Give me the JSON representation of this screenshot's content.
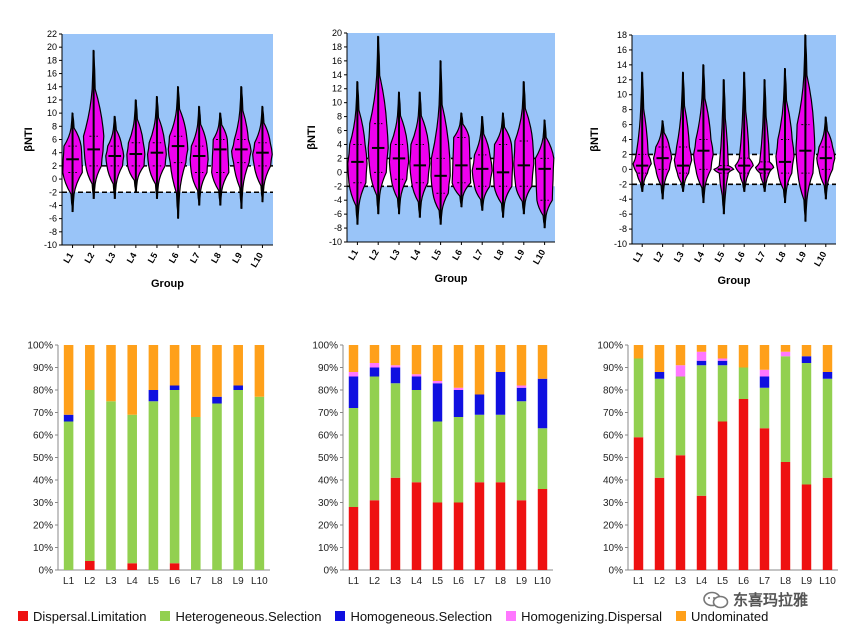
{
  "chart_data": [
    {
      "type": "violin",
      "ylabel": "βNTI",
      "xlabel": "Group",
      "ylim": [
        -10,
        22
      ],
      "ytick_step": 2,
      "thresholds": [
        2,
        -2
      ],
      "categories": [
        "L1",
        "L2",
        "L3",
        "L4",
        "L5",
        "L6",
        "L7",
        "L8",
        "L9",
        "L10"
      ],
      "series": [
        {
          "name": "L1",
          "min": -5,
          "max": 10,
          "median": 3,
          "q1": 1,
          "q3": 5,
          "spread": [
            2.2,
            2.4,
            2.5
          ]
        },
        {
          "name": "L2",
          "min": -3,
          "max": 19.5,
          "median": 4.5,
          "q1": 2,
          "q3": 6.5,
          "spread": [
            2.6,
            2.4,
            2.0
          ]
        },
        {
          "name": "L3",
          "min": -3,
          "max": 9.5,
          "median": 3.5,
          "q1": 2,
          "q3": 5,
          "spread": [
            1.8,
            2.3,
            2.0
          ]
        },
        {
          "name": "L4",
          "min": -2,
          "max": 12,
          "median": 3.8,
          "q1": 2,
          "q3": 5.5,
          "spread": [
            1.9,
            2.3,
            2.1
          ]
        },
        {
          "name": "L5",
          "min": -3,
          "max": 12.5,
          "median": 4,
          "q1": 2,
          "q3": 5.5,
          "spread": [
            2.0,
            2.4,
            2.1
          ]
        },
        {
          "name": "L6",
          "min": -6,
          "max": 14,
          "median": 5,
          "q1": 2.5,
          "q3": 6.5,
          "spread": [
            2.2,
            2.5,
            2.0
          ]
        },
        {
          "name": "L7",
          "min": -4,
          "max": 11,
          "median": 3.5,
          "q1": 1,
          "q3": 5,
          "spread": [
            2.0,
            2.3,
            2.0
          ]
        },
        {
          "name": "L8",
          "min": -4,
          "max": 10,
          "median": 4.5,
          "q1": 1,
          "q3": 6,
          "spread": [
            1.8,
            2.0,
            2.2
          ]
        },
        {
          "name": "L9",
          "min": -4.5,
          "max": 14,
          "median": 4.5,
          "q1": 2.5,
          "q3": 6,
          "spread": [
            1.8,
            2.5,
            2.0
          ]
        },
        {
          "name": "L10",
          "min": -3.5,
          "max": 11,
          "median": 4,
          "q1": 2,
          "q3": 5.5,
          "spread": [
            2.0,
            2.5,
            2.1
          ]
        }
      ]
    },
    {
      "type": "violin",
      "ylabel": "βNTI",
      "xlabel": "Group",
      "ylim": [
        -10,
        20
      ],
      "ytick_step": 2,
      "thresholds": [
        2,
        -2
      ],
      "categories": [
        "L1",
        "L2",
        "L3",
        "L4",
        "L5",
        "L6",
        "L7",
        "L8",
        "L9",
        "L10"
      ],
      "series": [
        {
          "name": "L1",
          "min": -7.5,
          "max": 13,
          "median": 1.5,
          "q1": -1.5,
          "q3": 4,
          "spread": [
            2.0,
            2.5,
            2.2
          ]
        },
        {
          "name": "L2",
          "min": -6,
          "max": 19.5,
          "median": 3.5,
          "q1": 0,
          "q3": 7,
          "spread": [
            2.2,
            2.6,
            2.1
          ]
        },
        {
          "name": "L3",
          "min": -6,
          "max": 11.5,
          "median": 2,
          "q1": -1,
          "q3": 4,
          "spread": [
            2.2,
            2.5,
            2.0
          ]
        },
        {
          "name": "L4",
          "min": -6.5,
          "max": 11.5,
          "median": 1,
          "q1": -1.5,
          "q3": 4,
          "spread": [
            2.3,
            2.6,
            2.1
          ]
        },
        {
          "name": "L5",
          "min": -7.5,
          "max": 16,
          "median": -0.5,
          "q1": -3,
          "q3": 2,
          "spread": [
            2.4,
            2.5,
            2.0
          ]
        },
        {
          "name": "L6",
          "min": -5,
          "max": 8.5,
          "median": 1,
          "q1": -1.5,
          "q3": 5,
          "spread": [
            2.0,
            2.2,
            2.4
          ]
        },
        {
          "name": "L7",
          "min": -5.5,
          "max": 8,
          "median": 0.5,
          "q1": -2,
          "q3": 2.5,
          "spread": [
            2.0,
            2.6,
            2.0
          ]
        },
        {
          "name": "L8",
          "min": -6.5,
          "max": 8.5,
          "median": 0,
          "q1": -2,
          "q3": 4,
          "spread": [
            2.2,
            2.5,
            2.3
          ]
        },
        {
          "name": "L9",
          "min": -6,
          "max": 13,
          "median": 1,
          "q1": -2,
          "q3": 4.5,
          "spread": [
            2.3,
            2.6,
            2.1
          ]
        },
        {
          "name": "L10",
          "min": -8,
          "max": 7.5,
          "median": 0.5,
          "q1": -4,
          "q3": 2,
          "spread": [
            2.4,
            2.2,
            2.0
          ]
        }
      ]
    },
    {
      "type": "violin",
      "ylabel": "βNTI",
      "xlabel": "Group",
      "ylim": [
        -10,
        18
      ],
      "ytick_step": 2,
      "thresholds": [
        2,
        -2
      ],
      "categories": [
        "L1",
        "L2",
        "L3",
        "L4",
        "L5",
        "L6",
        "L7",
        "L8",
        "L9",
        "L10"
      ],
      "series": [
        {
          "name": "L1",
          "min": -3,
          "max": 13,
          "median": 0.5,
          "q1": -0.5,
          "q3": 2,
          "spread": [
            1.6,
            2.4,
            1.4
          ]
        },
        {
          "name": "L2",
          "min": -4,
          "max": 6.5,
          "median": 1.5,
          "q1": 0,
          "q3": 3,
          "spread": [
            1.8,
            2.4,
            1.8
          ]
        },
        {
          "name": "L3",
          "min": -3,
          "max": 13,
          "median": 0.5,
          "q1": -0.5,
          "q3": 3,
          "spread": [
            1.7,
            2.3,
            1.5
          ]
        },
        {
          "name": "L4",
          "min": -4.5,
          "max": 14,
          "median": 2.5,
          "q1": 0,
          "q3": 4,
          "spread": [
            2.0,
            2.6,
            2.0
          ]
        },
        {
          "name": "L5",
          "min": -6,
          "max": 12,
          "median": 0,
          "q1": -0.5,
          "q3": 0.5,
          "spread": [
            1.2,
            2.6,
            1.2
          ]
        },
        {
          "name": "L6",
          "min": -3,
          "max": 13,
          "median": 0.5,
          "q1": -0.5,
          "q3": 1.5,
          "spread": [
            1.3,
            2.4,
            1.2
          ]
        },
        {
          "name": "L7",
          "min": -3,
          "max": 12,
          "median": 0,
          "q1": -0.5,
          "q3": 1,
          "spread": [
            1.3,
            2.4,
            1.2
          ]
        },
        {
          "name": "L8",
          "min": -4.5,
          "max": 13.5,
          "median": 1,
          "q1": -0.5,
          "q3": 4,
          "spread": [
            1.9,
            2.4,
            1.8
          ]
        },
        {
          "name": "L9",
          "min": -7,
          "max": 18,
          "median": 2.5,
          "q1": -0.5,
          "q3": 6,
          "spread": [
            2.2,
            2.5,
            2.0
          ]
        },
        {
          "name": "L10",
          "min": -4,
          "max": 7,
          "median": 1.5,
          "q1": 0,
          "q3": 3,
          "spread": [
            1.8,
            2.4,
            1.8
          ]
        }
      ]
    },
    {
      "type": "stacked_bar",
      "ylim": [
        0,
        100
      ],
      "yticks": [
        "0%",
        "10%",
        "20%",
        "30%",
        "40%",
        "50%",
        "60%",
        "70%",
        "80%",
        "90%",
        "100%"
      ],
      "categories": [
        "L1",
        "L2",
        "L3",
        "L4",
        "L5",
        "L6",
        "L7",
        "L8",
        "L9",
        "L10"
      ],
      "series": [
        {
          "name": "Dispersal.Limitation",
          "values": [
            0,
            4,
            0,
            3,
            0,
            3,
            0,
            0,
            0,
            0
          ]
        },
        {
          "name": "Heterogeneous.Selection",
          "values": [
            66,
            76,
            75,
            66,
            75,
            77,
            68,
            74,
            80,
            77
          ]
        },
        {
          "name": "Homogeneous.Selection",
          "values": [
            3,
            0,
            0,
            0,
            5,
            2,
            0,
            3,
            2,
            0
          ]
        },
        {
          "name": "Homogenizing.Dispersal",
          "values": [
            0,
            0,
            0,
            0,
            0,
            0,
            0,
            0,
            0,
            0
          ]
        },
        {
          "name": "Undominated",
          "values": [
            31,
            20,
            25,
            31,
            20,
            18,
            32,
            23,
            18,
            23
          ]
        }
      ]
    },
    {
      "type": "stacked_bar",
      "ylim": [
        0,
        100
      ],
      "yticks": [
        "0%",
        "10%",
        "20%",
        "30%",
        "40%",
        "50%",
        "60%",
        "70%",
        "80%",
        "90%",
        "100%"
      ],
      "categories": [
        "L1",
        "L2",
        "L3",
        "L4",
        "L5",
        "L6",
        "L7",
        "L8",
        "L9",
        "L10"
      ],
      "series": [
        {
          "name": "Dispersal.Limitation",
          "values": [
            28,
            31,
            41,
            39,
            30,
            30,
            39,
            39,
            31,
            36
          ]
        },
        {
          "name": "Heterogeneous.Selection",
          "values": [
            44,
            55,
            42,
            41,
            36,
            38,
            30,
            30,
            44,
            27
          ]
        },
        {
          "name": "Homogeneous.Selection",
          "values": [
            14,
            4,
            7,
            6,
            17,
            12,
            9,
            19,
            6,
            22
          ]
        },
        {
          "name": "Homogenizing.Dispersal",
          "values": [
            2,
            2,
            1,
            1,
            1,
            1,
            0,
            0,
            1,
            0
          ]
        },
        {
          "name": "Undominated",
          "values": [
            12,
            8,
            9,
            13,
            16,
            19,
            22,
            12,
            18,
            15
          ]
        }
      ]
    },
    {
      "type": "stacked_bar",
      "ylim": [
        0,
        100
      ],
      "yticks": [
        "0%",
        "10%",
        "20%",
        "30%",
        "40%",
        "50%",
        "60%",
        "70%",
        "80%",
        "90%",
        "100%"
      ],
      "categories": [
        "L1",
        "L2",
        "L3",
        "L4",
        "L5",
        "L6",
        "L7",
        "L8",
        "L9",
        "L10"
      ],
      "series": [
        {
          "name": "Dispersal.Limitation",
          "values": [
            59,
            41,
            51,
            33,
            66,
            76,
            63,
            48,
            38,
            41
          ]
        },
        {
          "name": "Heterogeneous.Selection",
          "values": [
            35,
            44,
            35,
            58,
            25,
            14,
            18,
            47,
            54,
            44
          ]
        },
        {
          "name": "Homogeneous.Selection",
          "values": [
            0,
            3,
            0,
            2,
            2,
            0,
            5,
            0,
            3,
            3
          ]
        },
        {
          "name": "Homogenizing.Dispersal",
          "values": [
            0,
            0,
            5,
            4,
            1,
            0,
            3,
            2,
            0,
            0
          ]
        },
        {
          "name": "Undominated",
          "values": [
            6,
            12,
            9,
            3,
            6,
            10,
            11,
            3,
            5,
            12
          ]
        }
      ]
    }
  ],
  "legend": [
    {
      "label": "Dispersal.Limitation",
      "color": "#ee1111"
    },
    {
      "label": "Heterogeneous.Selection",
      "color": "#92d050"
    },
    {
      "label": "Homogeneous.Selection",
      "color": "#1010e0"
    },
    {
      "label": "Homogenizing.Dispersal",
      "color": "#ff77ff"
    },
    {
      "label": "Undominated",
      "color": "#ffa01a"
    }
  ],
  "colors": {
    "violin_background": "#99c4f8",
    "threshold_band": "#ffffff",
    "violin_fill": "#ee00ee"
  },
  "watermark": {
    "text": "东喜玛拉雅",
    "icon": "wechat-icon"
  }
}
